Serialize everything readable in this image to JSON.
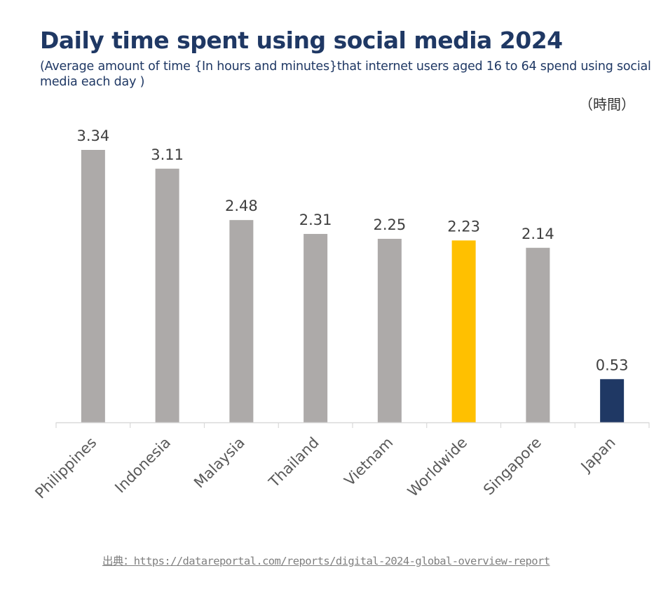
{
  "chart_data": {
    "type": "bar",
    "title": "Daily time spent using social media 2024",
    "subtitle": "(Average amount of time {In hours and minutes}that internet users aged 16 to 64 spend using social media each day )",
    "unit_label": "（時間）",
    "categories": [
      "Philippines",
      "Indonesia",
      "Malaysia",
      "Thailand",
      "Vietnam",
      "Worldwide",
      "Singapore",
      "Japan"
    ],
    "values": [
      3.34,
      3.11,
      2.48,
      2.31,
      2.25,
      2.23,
      2.14,
      0.53
    ],
    "data_labels": [
      "3.34",
      "3.11",
      "2.48",
      "2.31",
      "2.25",
      "2.23",
      "2.14",
      "0.53"
    ],
    "bar_colors": [
      "#adaaa9",
      "#adaaa9",
      "#adaaa9",
      "#adaaa9",
      "#adaaa9",
      "#ffc000",
      "#adaaa9",
      "#1f3864"
    ],
    "highlight": {
      "Worldwide": "#ffc000",
      "Japan": "#1f3864"
    },
    "xlabel": "",
    "ylabel": "",
    "ylim": [
      0,
      3.34
    ],
    "grid": false,
    "legend": "none",
    "source": "出典：https://datareportal.com/reports/digital-2024-global-overview-report"
  },
  "colors": {
    "title": "#1f3864",
    "default_bar": "#adaaa9",
    "label_text": "#404040",
    "axis": "#d9d9d9"
  }
}
